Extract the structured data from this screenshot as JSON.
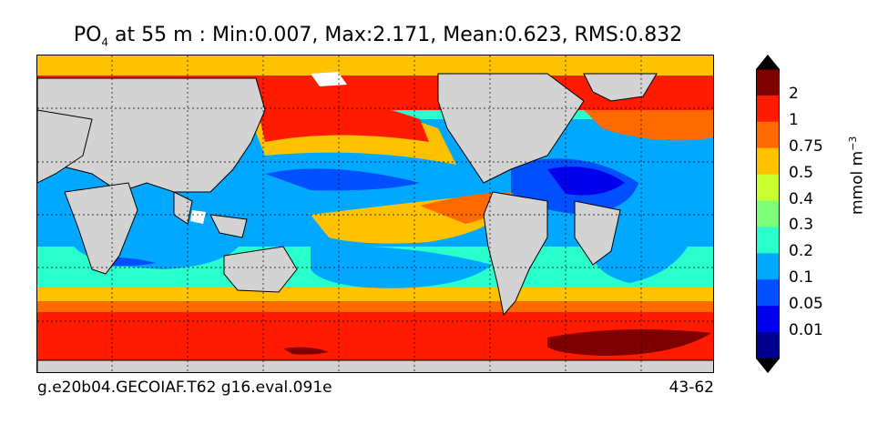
{
  "title": {
    "variable": "PO",
    "variable_sub": "4",
    "rest": " at 55 m : Min:0.007, Max:2.171, Mean:0.623, RMS:0.832"
  },
  "footer": {
    "left": "g.e20b04.GECOIAF.T62 g16.eval.091e",
    "right": "43-62"
  },
  "colorbar": {
    "unit_text": "mmol m",
    "unit_exp": "−3",
    "labels": [
      "2",
      "1",
      "0.75",
      "0.5",
      "0.4",
      "0.3",
      "0.2",
      "0.1",
      "0.05",
      "0.01"
    ],
    "colors": [
      "#7f0000",
      "#ff1a00",
      "#ff6a00",
      "#ffc200",
      "#c8ff2f",
      "#7dff7a",
      "#29ffcd",
      "#00a8ff",
      "#0050ff",
      "#0000ed",
      "#00008f"
    ],
    "over_color": "#000000",
    "under_color": "#000000"
  },
  "map": {
    "land_color": "#d3d3d3",
    "projection_note": ""
  }
}
